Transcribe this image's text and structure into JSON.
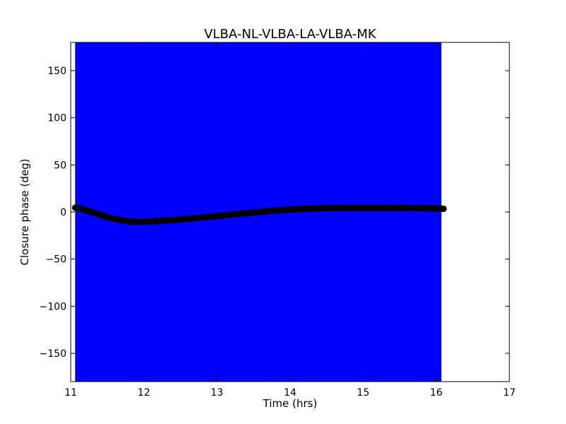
{
  "chart_data": {
    "type": "scatter",
    "title": "VLBA-NL-VLBA-LA-VLBA-MK",
    "xlabel": "Time (hrs)",
    "ylabel": "Closure phase (deg)",
    "xlim": [
      11,
      17
    ],
    "ylim": [
      -180,
      180
    ],
    "xticks": [
      11,
      12,
      13,
      14,
      15,
      16,
      17
    ],
    "yticks": [
      -150,
      -100,
      -50,
      0,
      50,
      100,
      150
    ],
    "xtick_labels": [
      "11",
      "12",
      "13",
      "14",
      "15",
      "16",
      "17"
    ],
    "ytick_labels": [
      "−150",
      "−100",
      "−50",
      "0",
      "50",
      "100",
      "150"
    ],
    "error_band": {
      "x_range": [
        11.06,
        16.07
      ],
      "y_range": [
        -180,
        180
      ],
      "color": "#0000ff"
    },
    "series": [
      {
        "marker_color": "#000000",
        "x": [
          11.06,
          11.1,
          11.2,
          11.3,
          11.4,
          11.5,
          11.6,
          11.7,
          11.8,
          11.9,
          12.0,
          12.2,
          12.4,
          12.6,
          12.8,
          13.0,
          13.2,
          13.4,
          13.6,
          13.8,
          14.0,
          14.2,
          14.4,
          14.6,
          14.8,
          15.0,
          15.2,
          15.4,
          15.6,
          15.8,
          16.0,
          16.05,
          16.1
        ],
        "y": [
          4.5,
          4.0,
          2.0,
          -0.5,
          -3.0,
          -5.5,
          -7.5,
          -9.0,
          -10.0,
          -10.5,
          -10.3,
          -9.6,
          -8.6,
          -7.3,
          -5.8,
          -4.3,
          -2.8,
          -1.3,
          0.2,
          1.5,
          2.6,
          3.4,
          3.9,
          4.1,
          4.2,
          4.2,
          4.2,
          4.2,
          4.1,
          4.0,
          3.8,
          3.6,
          3.4
        ]
      }
    ]
  }
}
